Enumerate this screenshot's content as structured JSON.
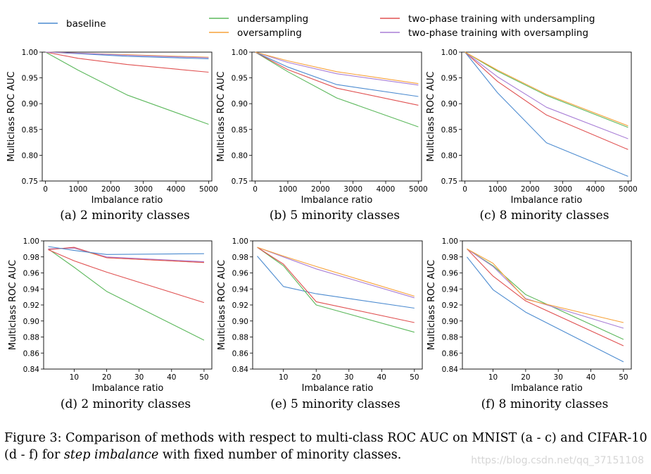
{
  "legend": {
    "baseline": {
      "label": "baseline",
      "color": "#4c8bd0"
    },
    "undersampling": {
      "label": "undersampling",
      "color": "#5cb85c"
    },
    "oversampling": {
      "label": "oversampling",
      "color": "#f7a23a"
    },
    "twophase_under": {
      "label": "two-phase training with undersampling",
      "color": "#e05151"
    },
    "twophase_over": {
      "label": "two-phase training with oversampling",
      "color": "#a87ed6"
    }
  },
  "figure_caption": {
    "prefix": "Figure 3: Comparison of methods with respect to multi-class ROC AUC on MNIST (a - c) and CIFAR-10",
    "line2_start": "(d - f) for ",
    "line2_italic": "step imbalance",
    "line2_end": " with fixed number of minority classes."
  },
  "watermark": "https://blog.csdn.net/qq_37151108",
  "chart_data": [
    {
      "type": "line",
      "id": "a",
      "subcaption": "(a) 2 minority classes",
      "xlabel": "Imbalance ratio",
      "ylabel": "Multiclass ROC AUC",
      "xlim": [
        -100,
        5100
      ],
      "ylim": [
        0.75,
        1.0
      ],
      "xticks": [
        0,
        1000,
        2000,
        3000,
        4000,
        5000
      ],
      "yticks": [
        0.75,
        0.8,
        0.85,
        0.9,
        0.95,
        1.0
      ],
      "ytick_labels": [
        "0.75",
        "0.80",
        "0.85",
        "0.90",
        "0.95",
        "1.00"
      ],
      "x": [
        1,
        1000,
        2500,
        5000
      ],
      "series": [
        {
          "key": "undersampling",
          "values": [
            1.0,
            0.965,
            0.917,
            0.86
          ]
        },
        {
          "key": "twophase_under",
          "values": [
            1.0,
            0.988,
            0.976,
            0.961
          ]
        },
        {
          "key": "baseline",
          "values": [
            1.0,
            0.997,
            0.992,
            0.987
          ]
        },
        {
          "key": "oversampling",
          "values": [
            1.0,
            0.998,
            0.995,
            0.99
          ]
        },
        {
          "key": "twophase_over",
          "values": [
            1.0,
            0.998,
            0.994,
            0.989
          ]
        }
      ]
    },
    {
      "type": "line",
      "id": "b",
      "subcaption": "(b) 5 minority classes",
      "xlabel": "Imbalance ratio",
      "ylabel": "Multiclass ROC AUC",
      "xlim": [
        -100,
        5100
      ],
      "ylim": [
        0.75,
        1.0
      ],
      "xticks": [
        0,
        1000,
        2000,
        3000,
        4000,
        5000
      ],
      "yticks": [
        0.75,
        0.8,
        0.85,
        0.9,
        0.95,
        1.0
      ],
      "ytick_labels": [
        "0.75",
        "0.80",
        "0.85",
        "0.90",
        "0.95",
        "1.00"
      ],
      "x": [
        1,
        1000,
        2500,
        5000
      ],
      "series": [
        {
          "key": "undersampling",
          "values": [
            1.0,
            0.962,
            0.911,
            0.855
          ]
        },
        {
          "key": "twophase_under",
          "values": [
            1.0,
            0.966,
            0.93,
            0.897
          ]
        },
        {
          "key": "baseline",
          "values": [
            1.0,
            0.971,
            0.937,
            0.914
          ]
        },
        {
          "key": "twophase_over",
          "values": [
            1.0,
            0.98,
            0.958,
            0.936
          ]
        },
        {
          "key": "oversampling",
          "values": [
            1.0,
            0.983,
            0.962,
            0.939
          ]
        }
      ]
    },
    {
      "type": "line",
      "id": "c",
      "subcaption": "(c) 8 minority classes",
      "xlabel": "Imbalance ratio",
      "ylabel": "Multiclass ROC AUC",
      "xlim": [
        -100,
        5100
      ],
      "ylim": [
        0.75,
        1.0
      ],
      "xticks": [
        0,
        1000,
        2000,
        3000,
        4000,
        5000
      ],
      "yticks": [
        0.75,
        0.8,
        0.85,
        0.9,
        0.95,
        1.0
      ],
      "ytick_labels": [
        "0.75",
        "0.80",
        "0.85",
        "0.90",
        "0.95",
        "1.00"
      ],
      "x": [
        1,
        1000,
        2500,
        5000
      ],
      "series": [
        {
          "key": "baseline",
          "values": [
            1.0,
            0.921,
            0.824,
            0.759
          ]
        },
        {
          "key": "twophase_under",
          "values": [
            1.0,
            0.943,
            0.878,
            0.811
          ]
        },
        {
          "key": "twophase_over",
          "values": [
            1.0,
            0.952,
            0.893,
            0.832
          ]
        },
        {
          "key": "undersampling",
          "values": [
            1.0,
            0.963,
            0.916,
            0.854
          ]
        },
        {
          "key": "oversampling",
          "values": [
            1.0,
            0.965,
            0.918,
            0.857
          ]
        }
      ]
    },
    {
      "type": "line",
      "id": "d",
      "subcaption": "(d) 2 minority classes",
      "xlabel": "Imbalance ratio",
      "ylabel": "Multiclass ROC AUC",
      "xlim": [
        0.6,
        52.4
      ],
      "ylim": [
        0.84,
        1.0
      ],
      "xticks": [
        10,
        20,
        30,
        40,
        50
      ],
      "yticks": [
        0.84,
        0.86,
        0.88,
        0.9,
        0.92,
        0.94,
        0.96,
        0.98,
        1.0
      ],
      "ytick_labels": [
        "0.84",
        "0.86",
        "0.88",
        "0.90",
        "0.92",
        "0.94",
        "0.96",
        "0.98",
        "1.00"
      ],
      "x": [
        2,
        10,
        20,
        50
      ],
      "series": [
        {
          "key": "undersampling",
          "values": [
            0.99,
            0.967,
            0.937,
            0.876
          ]
        },
        {
          "key": "twophase_under",
          "values": [
            0.989,
            0.975,
            0.961,
            0.923
          ]
        },
        {
          "key": "oversampling",
          "values": [
            0.99,
            0.991,
            0.979,
            0.973
          ]
        },
        {
          "key": "twophase_over",
          "values": [
            0.99,
            0.991,
            0.98,
            0.974
          ]
        },
        {
          "key": "twophase_under_b",
          "color_key": "twophase_under",
          "values": [
            0.989,
            0.992,
            0.979,
            0.973
          ]
        },
        {
          "key": "baseline",
          "values": [
            0.993,
            0.988,
            0.983,
            0.984
          ]
        }
      ]
    },
    {
      "type": "line",
      "id": "e",
      "subcaption": "(e) 5 minority classes",
      "xlabel": "Imbalance ratio",
      "ylabel": "Multiclass ROC AUC",
      "xlim": [
        0.6,
        52.4
      ],
      "ylim": [
        0.84,
        1.0
      ],
      "xticks": [
        10,
        20,
        30,
        40,
        50
      ],
      "yticks": [
        0.84,
        0.86,
        0.88,
        0.9,
        0.92,
        0.94,
        0.96,
        0.98,
        1.0
      ],
      "ytick_labels": [
        "0.84",
        "0.86",
        "0.88",
        "0.90",
        "0.92",
        "0.94",
        "0.96",
        "0.98",
        "1.00"
      ],
      "x": [
        2,
        10,
        20,
        50
      ],
      "series": [
        {
          "key": "baseline",
          "values": [
            0.981,
            0.943,
            0.934,
            0.916
          ]
        },
        {
          "key": "undersampling",
          "values": [
            0.992,
            0.969,
            0.92,
            0.886
          ]
        },
        {
          "key": "twophase_under",
          "values": [
            0.992,
            0.971,
            0.924,
            0.898
          ]
        },
        {
          "key": "twophase_over",
          "values": [
            0.992,
            0.98,
            0.965,
            0.929
          ]
        },
        {
          "key": "oversampling",
          "values": [
            0.992,
            0.981,
            0.968,
            0.931
          ]
        }
      ]
    },
    {
      "type": "line",
      "id": "f",
      "subcaption": "(f) 8 minority classes",
      "xlabel": "Imbalance ratio",
      "ylabel": "Multiclass ROC AUC",
      "xlim": [
        0.6,
        52.4
      ],
      "ylim": [
        0.84,
        1.0
      ],
      "xticks": [
        10,
        20,
        30,
        40,
        50
      ],
      "yticks": [
        0.84,
        0.86,
        0.88,
        0.9,
        0.92,
        0.94,
        0.96,
        0.98,
        1.0
      ],
      "ytick_labels": [
        "0.84",
        "0.86",
        "0.88",
        "0.90",
        "0.92",
        "0.94",
        "0.96",
        "0.98",
        "1.00"
      ],
      "x": [
        2,
        10,
        20,
        50
      ],
      "series": [
        {
          "key": "baseline",
          "values": [
            0.98,
            0.939,
            0.911,
            0.849
          ]
        },
        {
          "key": "twophase_under",
          "values": [
            0.99,
            0.956,
            0.925,
            0.869
          ]
        },
        {
          "key": "undersampling",
          "values": [
            0.99,
            0.969,
            0.933,
            0.877
          ]
        },
        {
          "key": "twophase_over",
          "values": [
            0.99,
            0.968,
            0.928,
            0.891
          ]
        },
        {
          "key": "oversampling",
          "values": [
            0.99,
            0.972,
            0.927,
            0.898
          ]
        }
      ]
    }
  ]
}
